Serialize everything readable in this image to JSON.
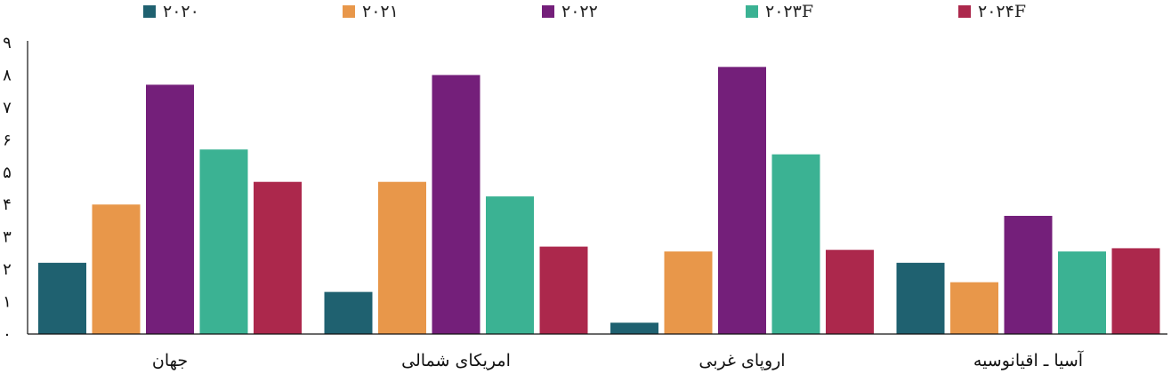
{
  "chart_data": {
    "type": "bar",
    "categories": [
      "جهان",
      "امریکای شمالی",
      "اروپای غربی",
      "آسیا ـ اقیانوسیه"
    ],
    "series": [
      {
        "name": "۲۰۲۰",
        "color": "#1f6170",
        "values": [
          2.2,
          1.3,
          0.35,
          2.2
        ]
      },
      {
        "name": "۲۰۲۱",
        "color": "#e8974a",
        "values": [
          4.0,
          4.7,
          2.55,
          1.6
        ]
      },
      {
        "name": "۲۰۲۲",
        "color": "#741f7a",
        "values": [
          7.7,
          8.0,
          8.25,
          3.65
        ]
      },
      {
        "name": "۲۰۲۳F",
        "color": "#3bb293",
        "values": [
          5.7,
          4.25,
          5.55,
          2.55
        ]
      },
      {
        "name": "۲۰۲۴F",
        "color": "#ac284c",
        "values": [
          4.7,
          2.7,
          2.6,
          2.65
        ]
      }
    ],
    "ylim": [
      0,
      9
    ],
    "yticks": [
      "۰",
      "۱",
      "۲",
      "۳",
      "۴",
      "۵",
      "۶",
      "۷",
      "۸",
      "۹"
    ],
    "grid": false,
    "legend": "top"
  }
}
